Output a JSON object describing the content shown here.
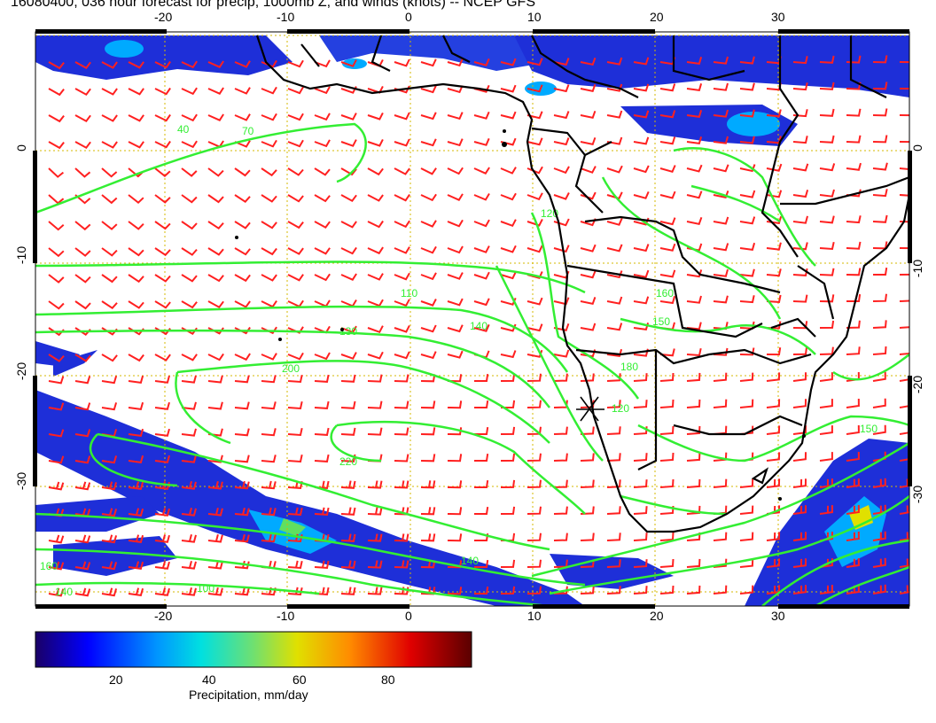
{
  "title": "16080400, 036 hour forecast for precip, 1000mb Z, and winds (knots) -- NCEP GFS",
  "axes": {
    "lon_ticks": [
      "-20",
      "-10",
      "0",
      "10",
      "20",
      "30"
    ],
    "lat_ticks": [
      "0",
      "-10",
      "-20",
      "-30"
    ]
  },
  "contour_labels": [
    "40",
    "70",
    "110",
    "120",
    "130",
    "140",
    "150",
    "160",
    "180",
    "200",
    "220",
    "120",
    "160",
    "140",
    "100",
    "150",
    "140"
  ],
  "colorbar": {
    "ticks": [
      "20",
      "40",
      "60",
      "80"
    ],
    "title": "Precipitation, mm/day",
    "colors": [
      "#00008b",
      "#0000ff",
      "#0080ff",
      "#00d0d0",
      "#60e060",
      "#d0d000",
      "#ff8000",
      "#e00000",
      "#600000"
    ]
  },
  "colors": {
    "contour": "#33ee33",
    "barbs": "#ff0000",
    "coast": "#000000",
    "grid": "#d4b800"
  }
}
